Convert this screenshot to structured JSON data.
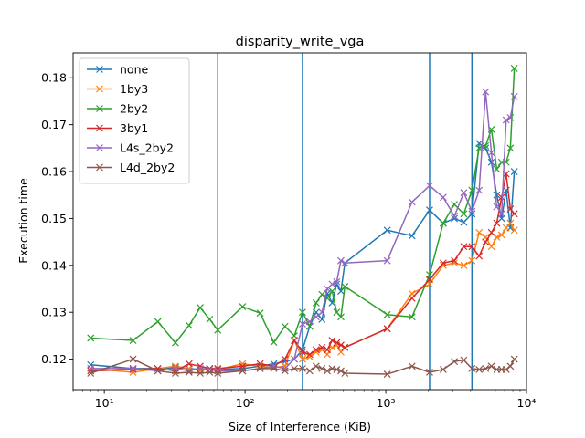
{
  "chart_data": {
    "type": "line",
    "title": "disparity_write_vga",
    "xlabel": "Size of Interference (KiB)",
    "ylabel": "Execution time",
    "xscale": "log",
    "xlim": [
      6,
      10000
    ],
    "ylim": [
      0.1135,
      0.1853
    ],
    "x_ticks": [
      10,
      100,
      1000,
      10000
    ],
    "x_tick_labels": [
      "10¹",
      "10²",
      "10³",
      "10⁴"
    ],
    "y_ticks": [
      0.12,
      0.13,
      0.14,
      0.15,
      0.16,
      0.17,
      0.18
    ],
    "y_tick_labels": [
      "0.12",
      "0.13",
      "0.14",
      "0.15",
      "0.16",
      "0.17",
      "0.18"
    ],
    "grid": false,
    "legend_position": "top-left",
    "vlines": {
      "color": "#1f77b4",
      "x": [
        64,
        256,
        2048,
        4096
      ]
    },
    "series": [
      {
        "name": "none",
        "color": "#1f77b4",
        "points": [
          [
            8,
            0.1188
          ],
          [
            16,
            0.118
          ],
          [
            24,
            0.118
          ],
          [
            32,
            0.1182
          ],
          [
            40,
            0.118
          ],
          [
            48,
            0.1178
          ],
          [
            56,
            0.118
          ],
          [
            64,
            0.1178
          ],
          [
            96,
            0.118
          ],
          [
            128,
            0.1185
          ],
          [
            160,
            0.119
          ],
          [
            192,
            0.1195
          ],
          [
            224,
            0.12
          ],
          [
            256,
            0.122
          ],
          [
            288,
            0.127
          ],
          [
            320,
            0.13
          ],
          [
            352,
            0.1285
          ],
          [
            384,
            0.134
          ],
          [
            416,
            0.132
          ],
          [
            448,
            0.136
          ],
          [
            480,
            0.1345
          ],
          [
            512,
            0.1405
          ],
          [
            1024,
            0.1475
          ],
          [
            1536,
            0.1463
          ],
          [
            2048,
            0.1518
          ],
          [
            2560,
            0.149
          ],
          [
            3072,
            0.15
          ],
          [
            3584,
            0.1492
          ],
          [
            4096,
            0.151
          ],
          [
            4608,
            0.166
          ],
          [
            5120,
            0.165
          ],
          [
            5632,
            0.162
          ],
          [
            6144,
            0.155
          ],
          [
            6656,
            0.15
          ],
          [
            7168,
            0.156
          ],
          [
            7680,
            0.148
          ],
          [
            8192,
            0.16
          ]
        ]
      },
      {
        "name": "1by3",
        "color": "#ff7f0e",
        "points": [
          [
            8,
            0.118
          ],
          [
            16,
            0.1172
          ],
          [
            24,
            0.118
          ],
          [
            32,
            0.1185
          ],
          [
            40,
            0.118
          ],
          [
            48,
            0.1175
          ],
          [
            56,
            0.118
          ],
          [
            64,
            0.1178
          ],
          [
            96,
            0.119
          ],
          [
            128,
            0.1185
          ],
          [
            160,
            0.1182
          ],
          [
            192,
            0.1185
          ],
          [
            224,
            0.124
          ],
          [
            256,
            0.12
          ],
          [
            288,
            0.1205
          ],
          [
            320,
            0.1215
          ],
          [
            352,
            0.122
          ],
          [
            384,
            0.121
          ],
          [
            416,
            0.1225
          ],
          [
            448,
            0.123
          ],
          [
            480,
            0.1215
          ],
          [
            512,
            0.1225
          ],
          [
            1024,
            0.1265
          ],
          [
            1536,
            0.134
          ],
          [
            2048,
            0.136
          ],
          [
            2560,
            0.14
          ],
          [
            3072,
            0.1405
          ],
          [
            3584,
            0.14
          ],
          [
            4096,
            0.141
          ],
          [
            4608,
            0.147
          ],
          [
            5120,
            0.146
          ],
          [
            5632,
            0.144
          ],
          [
            6144,
            0.146
          ],
          [
            6656,
            0.1465
          ],
          [
            7168,
            0.148
          ],
          [
            7680,
            0.149
          ],
          [
            8192,
            0.1475
          ]
        ]
      },
      {
        "name": "2by2",
        "color": "#2ca02c",
        "points": [
          [
            8,
            0.1245
          ],
          [
            16,
            0.124
          ],
          [
            24,
            0.128
          ],
          [
            32,
            0.1235
          ],
          [
            40,
            0.1272
          ],
          [
            48,
            0.131
          ],
          [
            56,
            0.1285
          ],
          [
            64,
            0.1262
          ],
          [
            96,
            0.1312
          ],
          [
            128,
            0.1298
          ],
          [
            160,
            0.1236
          ],
          [
            192,
            0.127
          ],
          [
            224,
            0.125
          ],
          [
            256,
            0.13
          ],
          [
            288,
            0.127
          ],
          [
            320,
            0.132
          ],
          [
            352,
            0.1338
          ],
          [
            384,
            0.133
          ],
          [
            416,
            0.1345
          ],
          [
            448,
            0.13
          ],
          [
            480,
            0.129
          ],
          [
            512,
            0.1355
          ],
          [
            1024,
            0.1295
          ],
          [
            1536,
            0.129
          ],
          [
            2048,
            0.138
          ],
          [
            2560,
            0.149
          ],
          [
            3072,
            0.153
          ],
          [
            3584,
            0.151
          ],
          [
            4096,
            0.156
          ],
          [
            4608,
            0.165
          ],
          [
            5120,
            0.1655
          ],
          [
            5632,
            0.169
          ],
          [
            6144,
            0.1605
          ],
          [
            6656,
            0.162
          ],
          [
            7168,
            0.162
          ],
          [
            7680,
            0.165
          ],
          [
            8192,
            0.182
          ]
        ]
      },
      {
        "name": "3by1",
        "color": "#d62728",
        "points": [
          [
            8,
            0.1175
          ],
          [
            16,
            0.1178
          ],
          [
            24,
            0.118
          ],
          [
            32,
            0.1175
          ],
          [
            40,
            0.119
          ],
          [
            48,
            0.1185
          ],
          [
            56,
            0.118
          ],
          [
            64,
            0.118
          ],
          [
            96,
            0.1185
          ],
          [
            128,
            0.119
          ],
          [
            160,
            0.1185
          ],
          [
            192,
            0.12
          ],
          [
            224,
            0.124
          ],
          [
            256,
            0.1215
          ],
          [
            288,
            0.121
          ],
          [
            320,
            0.122
          ],
          [
            352,
            0.1225
          ],
          [
            384,
            0.122
          ],
          [
            416,
            0.124
          ],
          [
            448,
            0.1235
          ],
          [
            480,
            0.123
          ],
          [
            512,
            0.1225
          ],
          [
            1024,
            0.1265
          ],
          [
            1536,
            0.133
          ],
          [
            2048,
            0.137
          ],
          [
            2560,
            0.1405
          ],
          [
            3072,
            0.141
          ],
          [
            3584,
            0.144
          ],
          [
            4096,
            0.144
          ],
          [
            4608,
            0.142
          ],
          [
            5120,
            0.145
          ],
          [
            5632,
            0.147
          ],
          [
            6144,
            0.149
          ],
          [
            6656,
            0.1545
          ],
          [
            7168,
            0.1595
          ],
          [
            7680,
            0.152
          ],
          [
            8192,
            0.151
          ]
        ]
      },
      {
        "name": "L4s_2by2",
        "color": "#9467bd",
        "points": [
          [
            8,
            0.118
          ],
          [
            16,
            0.118
          ],
          [
            24,
            0.1175
          ],
          [
            32,
            0.118
          ],
          [
            40,
            0.1175
          ],
          [
            48,
            0.118
          ],
          [
            56,
            0.1178
          ],
          [
            64,
            0.1175
          ],
          [
            96,
            0.1175
          ],
          [
            128,
            0.118
          ],
          [
            160,
            0.1185
          ],
          [
            192,
            0.118
          ],
          [
            224,
            0.12
          ],
          [
            256,
            0.1275
          ],
          [
            288,
            0.128
          ],
          [
            320,
            0.129
          ],
          [
            352,
            0.13
          ],
          [
            384,
            0.135
          ],
          [
            416,
            0.136
          ],
          [
            448,
            0.1365
          ],
          [
            480,
            0.141
          ],
          [
            512,
            0.1405
          ],
          [
            1024,
            0.141
          ],
          [
            1536,
            0.1535
          ],
          [
            2048,
            0.157
          ],
          [
            2560,
            0.1545
          ],
          [
            3072,
            0.1505
          ],
          [
            3584,
            0.1555
          ],
          [
            4096,
            0.1515
          ],
          [
            4608,
            0.156
          ],
          [
            5120,
            0.177
          ],
          [
            5632,
            0.164
          ],
          [
            6144,
            0.1525
          ],
          [
            6656,
            0.151
          ],
          [
            7168,
            0.171
          ],
          [
            7680,
            0.1715
          ],
          [
            8192,
            0.176
          ]
        ]
      },
      {
        "name": "L4d_2by2",
        "color": "#8c564b",
        "points": [
          [
            8,
            0.117
          ],
          [
            16,
            0.12
          ],
          [
            24,
            0.1175
          ],
          [
            32,
            0.117
          ],
          [
            40,
            0.1172
          ],
          [
            48,
            0.117
          ],
          [
            56,
            0.1172
          ],
          [
            64,
            0.117
          ],
          [
            96,
            0.1175
          ],
          [
            128,
            0.118
          ],
          [
            160,
            0.118
          ],
          [
            192,
            0.1175
          ],
          [
            224,
            0.118
          ],
          [
            256,
            0.118
          ],
          [
            288,
            0.1175
          ],
          [
            320,
            0.1185
          ],
          [
            352,
            0.118
          ],
          [
            384,
            0.1175
          ],
          [
            416,
            0.118
          ],
          [
            448,
            0.1178
          ],
          [
            480,
            0.1175
          ],
          [
            512,
            0.117
          ],
          [
            1024,
            0.1168
          ],
          [
            1536,
            0.1185
          ],
          [
            2048,
            0.1172
          ],
          [
            2560,
            0.1178
          ],
          [
            3072,
            0.1195
          ],
          [
            3584,
            0.1198
          ],
          [
            4096,
            0.118
          ],
          [
            4608,
            0.1178
          ],
          [
            5120,
            0.118
          ],
          [
            5632,
            0.1185
          ],
          [
            6144,
            0.1178
          ],
          [
            6656,
            0.1178
          ],
          [
            7168,
            0.1178
          ],
          [
            7680,
            0.1185
          ],
          [
            8192,
            0.12
          ]
        ]
      }
    ]
  }
}
